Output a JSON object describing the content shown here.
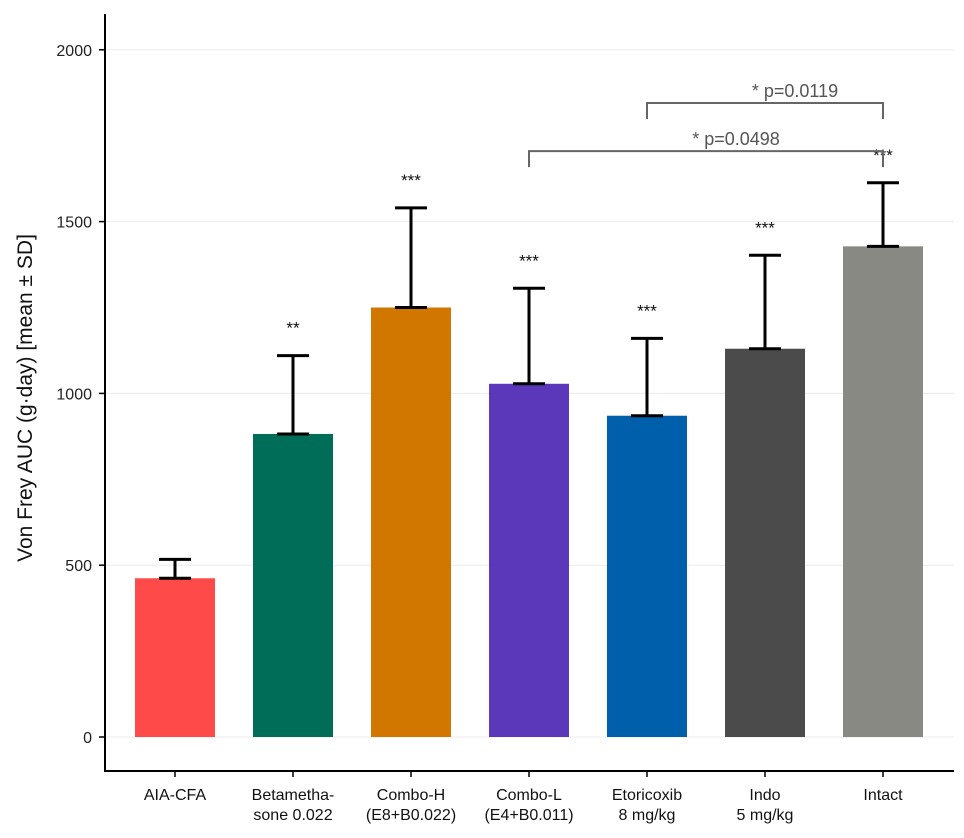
{
  "chart_data": {
    "type": "bar",
    "ylabel": "Von Frey AUC (g·day) [mean ± SD]",
    "ylim": [
      -100,
      2100
    ],
    "yticks": [
      0,
      500,
      1000,
      1500,
      2000
    ],
    "grid": true,
    "categories": [
      [
        "AIA-CFA"
      ],
      [
        "Betametha-",
        "sone 0.022"
      ],
      [
        "Combo-H",
        "(E8+B0.022)"
      ],
      [
        "Combo-L",
        "(E4+B0.011)"
      ],
      [
        "Etoricoxib",
        "8 mg/kg"
      ],
      [
        "Indo",
        "5 mg/kg"
      ],
      [
        "Intact"
      ]
    ],
    "values": [
      462,
      882,
      1250,
      1028,
      935,
      1130,
      1428
    ],
    "sd": [
      55,
      228,
      290,
      278,
      225,
      272,
      185
    ],
    "significance": [
      "",
      "**",
      "***",
      "***",
      "***",
      "***",
      "***"
    ],
    "colors": [
      "#FF4A4A",
      "#006D58",
      "#D17700",
      "#5B38BA",
      "#005FAA",
      "#4B4B4B",
      "#898983"
    ],
    "comparisons": [
      {
        "from": 4,
        "to": 6,
        "label": "*  p=0.0119",
        "y": 1845
      },
      {
        "from": 3,
        "to": 6,
        "label": "*  p=0.0498",
        "y": 1705
      }
    ]
  }
}
